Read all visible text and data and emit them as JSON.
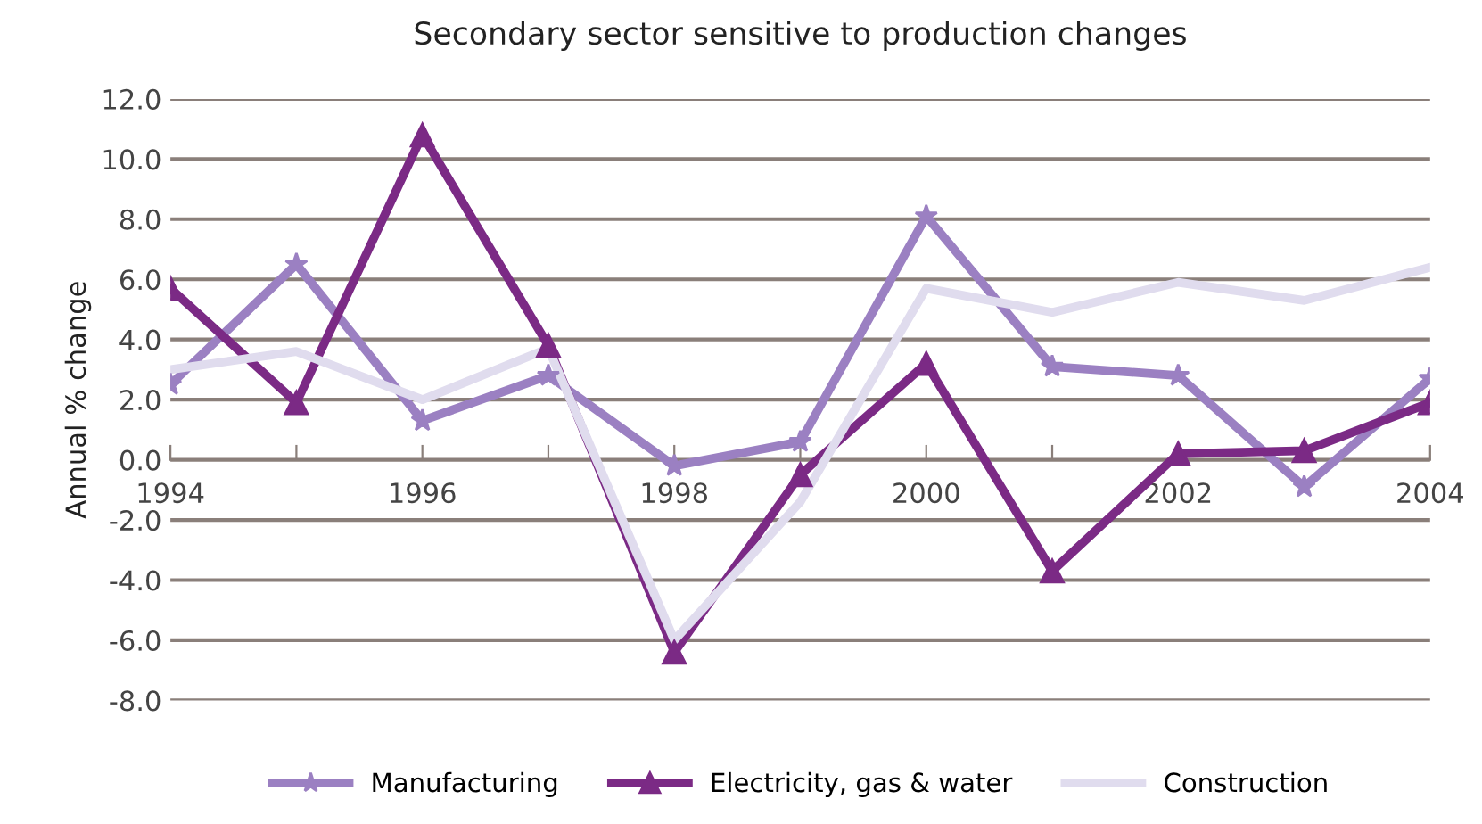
{
  "chart_data": {
    "type": "line",
    "title": "Secondary sector sensitive to production changes",
    "ylabel": "Annual % change",
    "x": [
      1994,
      1995,
      1996,
      1997,
      1998,
      1999,
      2000,
      2001,
      2002,
      2003,
      2004
    ],
    "xlim": [
      1994,
      2004
    ],
    "xticks": [
      1994,
      {
        "value": 1995,
        "label": null
      },
      1996,
      {
        "value": 1997,
        "label": null
      },
      1998,
      {
        "value": 1999,
        "label": null
      },
      2000,
      {
        "value": 2001,
        "label": null
      },
      2002,
      {
        "value": 2003,
        "label": null
      },
      2004
    ],
    "ylim": [
      -8,
      12
    ],
    "yticks": [
      {
        "value": -8,
        "label": "-8.0"
      },
      {
        "value": -6,
        "label": "-6.0"
      },
      {
        "value": -4,
        "label": "-4.0"
      },
      {
        "value": -2,
        "label": "-2.0"
      },
      {
        "value": 0,
        "label": "0.0"
      },
      {
        "value": 2,
        "label": "2.0"
      },
      {
        "value": 4,
        "label": "4.0"
      },
      {
        "value": 6,
        "label": "6.0"
      },
      {
        "value": 8,
        "label": "8.0"
      },
      {
        "value": 10,
        "label": "10.0"
      },
      {
        "value": 12,
        "label": "12.0"
      }
    ],
    "grid": "y",
    "legend": "bottom",
    "series": [
      {
        "name": "Manufacturing",
        "color": "#9b80c2",
        "marker": "star",
        "values": [
          2.5,
          6.5,
          1.3,
          2.8,
          -0.2,
          0.6,
          8.1,
          3.1,
          2.8,
          -0.9,
          2.7
        ]
      },
      {
        "name": "Electricity, gas & water",
        "color": "#7b2a85",
        "marker": "triangle",
        "values": [
          5.7,
          1.9,
          10.8,
          3.8,
          -6.4,
          -0.5,
          3.2,
          -3.7,
          0.2,
          0.3,
          1.9
        ]
      },
      {
        "name": "Construction",
        "color": "#e0dcee",
        "marker": "none",
        "values": [
          3.0,
          3.6,
          2.0,
          3.7,
          -6.0,
          -1.4,
          5.7,
          4.9,
          5.9,
          5.3,
          6.4
        ]
      }
    ]
  }
}
